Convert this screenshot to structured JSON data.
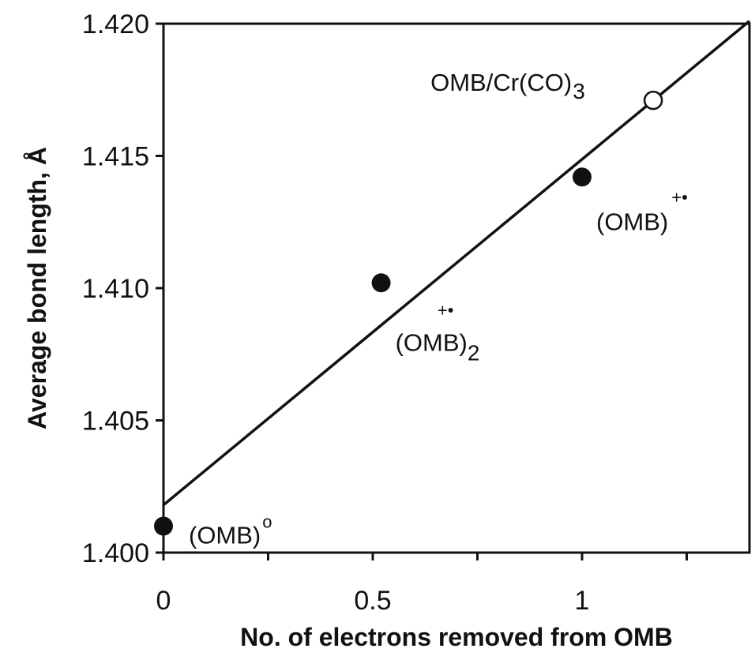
{
  "chart_data": {
    "type": "scatter",
    "title": "",
    "xlabel": "No. of electrons removed from OMB",
    "ylabel": "Average bond length, Å",
    "xlim": [
      0,
      1.4
    ],
    "ylim": [
      1.4,
      1.42
    ],
    "x_ticks": [
      0,
      0.5,
      1
    ],
    "x_tick_labels": [
      "0",
      "0.5",
      "1"
    ],
    "x_minor_ticks": [
      0.25,
      0.75,
      1.25
    ],
    "y_ticks": [
      1.4,
      1.405,
      1.41,
      1.415,
      1.42
    ],
    "y_tick_labels": [
      "1.400",
      "1.405",
      "1.410",
      "1.415",
      "1.420"
    ],
    "grid": false,
    "series": [
      {
        "marker": "filled-circle",
        "points": [
          {
            "x": 0,
            "y": 1.401,
            "label": "(OMB)",
            "sup": "o"
          },
          {
            "x": 0.52,
            "y": 1.4102,
            "label": "(OMB)",
            "sub": "2",
            "sup": "+•"
          },
          {
            "x": 1.0,
            "y": 1.4142,
            "label": "(OMB)",
            "sup": "+•"
          }
        ]
      },
      {
        "marker": "open-circle",
        "points": [
          {
            "x": 1.17,
            "y": 1.4171,
            "label": "OMB/Cr(CO)",
            "sub": "3"
          }
        ]
      }
    ],
    "fit_line": {
      "x": [
        0,
        1.4
      ],
      "y": [
        1.4018,
        1.4201
      ]
    }
  }
}
